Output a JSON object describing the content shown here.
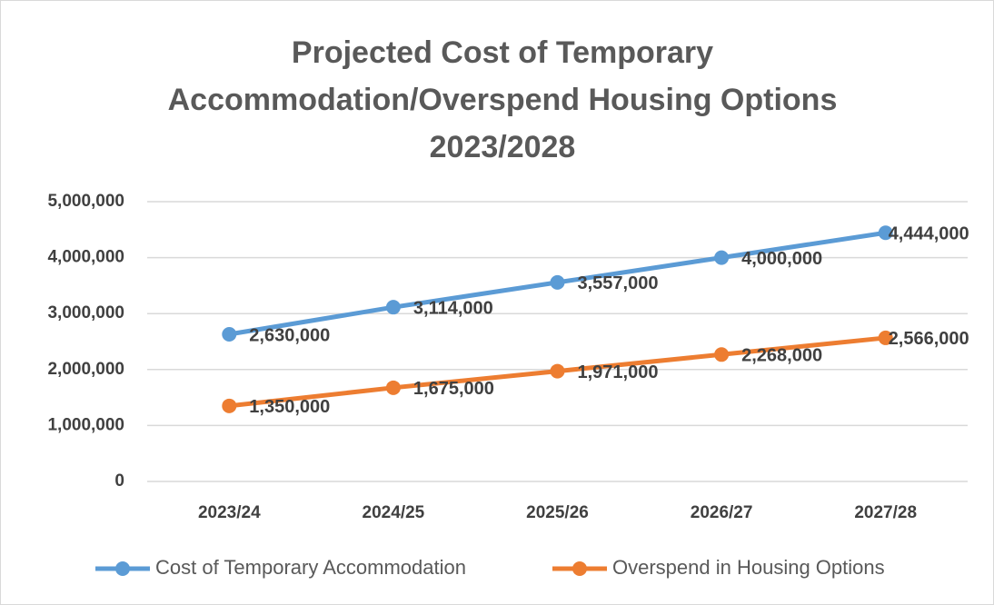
{
  "chart_data": {
    "type": "line",
    "title": [
      "Projected Cost of Temporary",
      "Accommodation/Overspend Housing Options",
      "2023/2028"
    ],
    "categories": [
      "2023/24",
      "2024/25",
      "2025/26",
      "2026/27",
      "2027/28"
    ],
    "series": [
      {
        "name": "Cost of Temporary Accommodation",
        "color": "#5b9bd5",
        "values": [
          2630000,
          3114000,
          3557000,
          4000000,
          4444000
        ],
        "value_labels": [
          "2,630,000",
          "3,114,000",
          "3,557,000",
          "4,000,000",
          "4,444,000"
        ]
      },
      {
        "name": "Overspend in Housing Options",
        "color": "#ed7d31",
        "values": [
          1350000,
          1675000,
          1971000,
          2268000,
          2566000
        ],
        "value_labels": [
          "1,350,000",
          "1,675,000",
          "1,971,000",
          "2,268,000",
          "2,566,000"
        ]
      }
    ],
    "ylim": [
      0,
      5000000
    ],
    "yticks": [
      0,
      {
        "value": 1000000,
        "label": "1,000,000"
      },
      {
        "value": 2000000,
        "label": "2,000,000"
      },
      {
        "value": 3000000,
        "label": "3,000,000"
      },
      {
        "value": 4000000,
        "label": "4,000,000"
      },
      {
        "value": 5000000,
        "label": "5,000,000"
      }
    ],
    "grid": true,
    "legend": "bottom"
  }
}
